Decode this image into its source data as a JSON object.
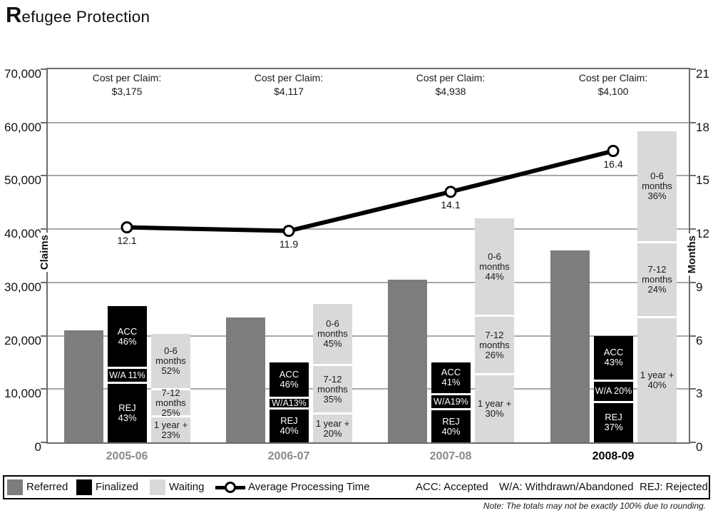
{
  "title": {
    "initial": "R",
    "rest": "efugee Protection"
  },
  "note": "Note: The totals may not be exactly 100% due to rounding.",
  "legend": {
    "items": [
      {
        "swatch": "referred",
        "label": "Referred"
      },
      {
        "swatch": "finalized",
        "label": "Finalized"
      },
      {
        "swatch": "waiting",
        "label": "Waiting"
      },
      {
        "swatch": "line",
        "label": "Average Processing Time"
      }
    ],
    "abbreviations": [
      "ACC: Accepted",
      "W/A: Withdrawn/Abandoned",
      "REJ: Rejected"
    ]
  },
  "chart_data": {
    "type": "bar",
    "subtype": "grouped-stacked-bars-with-line",
    "categories": [
      "2005-06",
      "2006-07",
      "2007-08",
      "2008-09"
    ],
    "category_colors": [
      "#8a8a8a",
      "#8a8a8a",
      "#8a8a8a",
      "#000000"
    ],
    "cost_per_claim": {
      "label": "Cost per Claim:",
      "values": [
        "$3,175",
        "$4,117",
        "$4,938",
        "$4,100"
      ]
    },
    "axes": {
      "left": {
        "label": "Claims",
        "max": 70000,
        "ticks": [
          "70,000",
          "60,000",
          "50,000",
          "40,000",
          "30,000",
          "20,000",
          "10,000",
          "0"
        ]
      },
      "right": {
        "label": "Months",
        "max": 21,
        "ticks": [
          "21",
          "18",
          "15",
          "12",
          "9",
          "6",
          "3",
          "0"
        ]
      }
    },
    "grid": true,
    "series": [
      {
        "name": "Referred",
        "role": "referred",
        "color": "#7d7d7d",
        "values": [
          21000,
          23400,
          30500,
          36000
        ]
      },
      {
        "name": "Finalized",
        "role": "finalized",
        "color": "#000000",
        "text_color": "#ffffff",
        "values": [
          25500,
          15000,
          15000,
          20000
        ],
        "segments": [
          [
            {
              "lines": [
                "ACC",
                "46%"
              ],
              "pct": 46
            },
            {
              "lines": [
                "W/A 11%"
              ],
              "pct": 11
            },
            {
              "lines": [
                "REJ",
                "43%"
              ],
              "pct": 43
            }
          ],
          [
            {
              "lines": [
                "ACC",
                "46%"
              ],
              "pct": 46
            },
            {
              "lines": [
                "W/A13%"
              ],
              "pct": 13
            },
            {
              "lines": [
                "REJ",
                "40%"
              ],
              "pct": 40
            }
          ],
          [
            {
              "lines": [
                "ACC",
                "41%"
              ],
              "pct": 41
            },
            {
              "lines": [
                "W/A19%"
              ],
              "pct": 19
            },
            {
              "lines": [
                "REJ",
                "40%"
              ],
              "pct": 40
            }
          ],
          [
            {
              "lines": [
                "ACC",
                "43%"
              ],
              "pct": 43
            },
            {
              "lines": [
                "W/A 20%"
              ],
              "pct": 20
            },
            {
              "lines": [
                "REJ",
                "37%"
              ],
              "pct": 37
            }
          ]
        ]
      },
      {
        "name": "Waiting",
        "role": "waiting",
        "color": "#d9d9d9",
        "text_color": "#1a1a1a",
        "values": [
          20300,
          26000,
          42000,
          58300
        ],
        "segments": [
          [
            {
              "lines": [
                "0-6",
                "months",
                "52%"
              ],
              "pct": 52
            },
            {
              "lines": [
                "7-12",
                "months",
                "25%"
              ],
              "pct": 25
            },
            {
              "lines": [
                "1 year +",
                "23%"
              ],
              "pct": 23
            }
          ],
          [
            {
              "lines": [
                "0-6",
                "months",
                "45%"
              ],
              "pct": 45
            },
            {
              "lines": [
                "7-12",
                "months",
                "35%"
              ],
              "pct": 35
            },
            {
              "lines": [
                "1 year +",
                "20%"
              ],
              "pct": 20
            }
          ],
          [
            {
              "lines": [
                "0-6",
                "months",
                "44%"
              ],
              "pct": 44
            },
            {
              "lines": [
                "7-12",
                "months",
                "26%"
              ],
              "pct": 26
            },
            {
              "lines": [
                "1 year +",
                "30%"
              ],
              "pct": 30
            }
          ],
          [
            {
              "lines": [
                "0-6",
                "months",
                "36%"
              ],
              "pct": 36
            },
            {
              "lines": [
                "7-12",
                "months",
                "24%"
              ],
              "pct": 24
            },
            {
              "lines": [
                "1 year +",
                "40%"
              ],
              "pct": 40
            }
          ]
        ]
      }
    ],
    "line_series": {
      "name": "Average Processing Time",
      "values": [
        12.1,
        11.9,
        14.1,
        16.4
      ],
      "labels": [
        "12.1",
        "11.9",
        "14.1",
        "16.4"
      ],
      "color": "#000000",
      "marker": "open-circle"
    }
  }
}
